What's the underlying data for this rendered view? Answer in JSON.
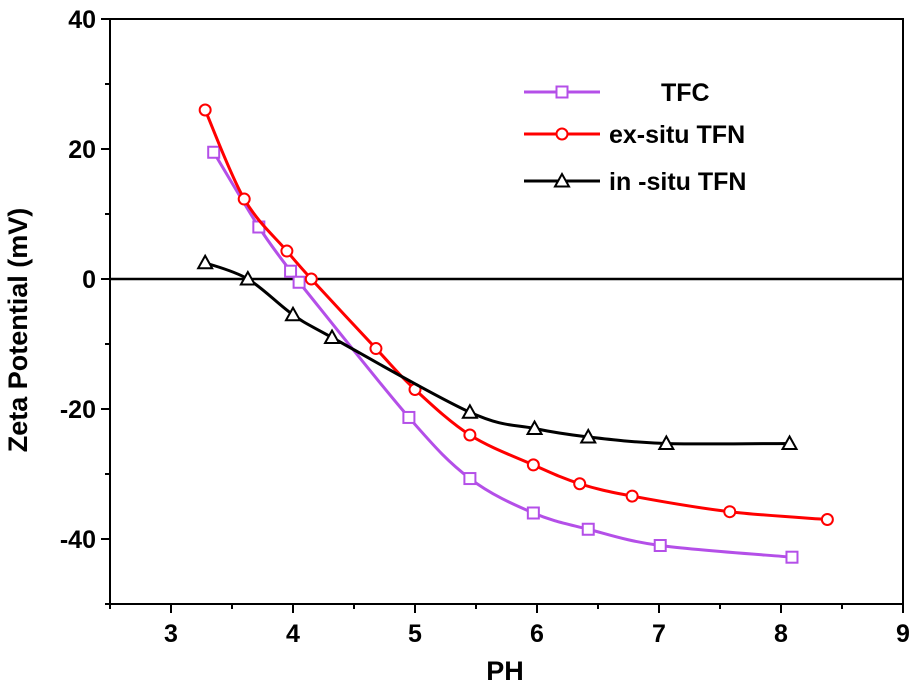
{
  "chart_data": {
    "type": "line",
    "title": "",
    "xlabel": "PH",
    "ylabel": "Zeta Potential (mV)",
    "xlim": [
      2.5,
      9
    ],
    "ylim": [
      -50,
      40
    ],
    "xticks": [
      3,
      4,
      5,
      6,
      7,
      8,
      9
    ],
    "yticks": [
      -40,
      -20,
      0,
      20,
      40
    ],
    "xtick_labels": [
      "3",
      "4",
      "5",
      "6",
      "7",
      "8",
      "9"
    ],
    "ytick_labels": [
      "-40",
      "-20",
      "0",
      "20",
      "40"
    ],
    "reference_line_y": 0,
    "grid": false,
    "legend_position": "top-right",
    "series": [
      {
        "name": "TFC",
        "color": "#b44fe8",
        "marker": "square",
        "x": [
          3.35,
          3.72,
          3.98,
          4.05,
          4.95,
          5.45,
          5.97,
          6.42,
          7.01,
          8.09
        ],
        "y": [
          19.5,
          8.0,
          1.2,
          -0.5,
          -21.3,
          -30.7,
          -36.0,
          -38.5,
          -41.0,
          -42.8
        ]
      },
      {
        "name": "ex-situ TFN",
        "color": "#ff0000",
        "marker": "circle",
        "x": [
          3.28,
          3.6,
          3.95,
          4.15,
          4.68,
          5.0,
          5.45,
          5.97,
          6.35,
          6.78,
          7.58,
          8.38
        ],
        "y": [
          26.0,
          12.3,
          4.3,
          0.0,
          -10.7,
          -17.0,
          -24.0,
          -28.6,
          -31.5,
          -33.4,
          -35.8,
          -37.0
        ]
      },
      {
        "name": "in -situ TFN",
        "color": "#000000",
        "marker": "triangle",
        "x": [
          3.28,
          3.63,
          4.0,
          4.32,
          5.45,
          5.98,
          6.42,
          7.06,
          8.07
        ],
        "y": [
          2.5,
          0.0,
          -5.5,
          -9.0,
          -20.5,
          -23.0,
          -24.3,
          -25.3,
          -25.3
        ]
      }
    ]
  }
}
